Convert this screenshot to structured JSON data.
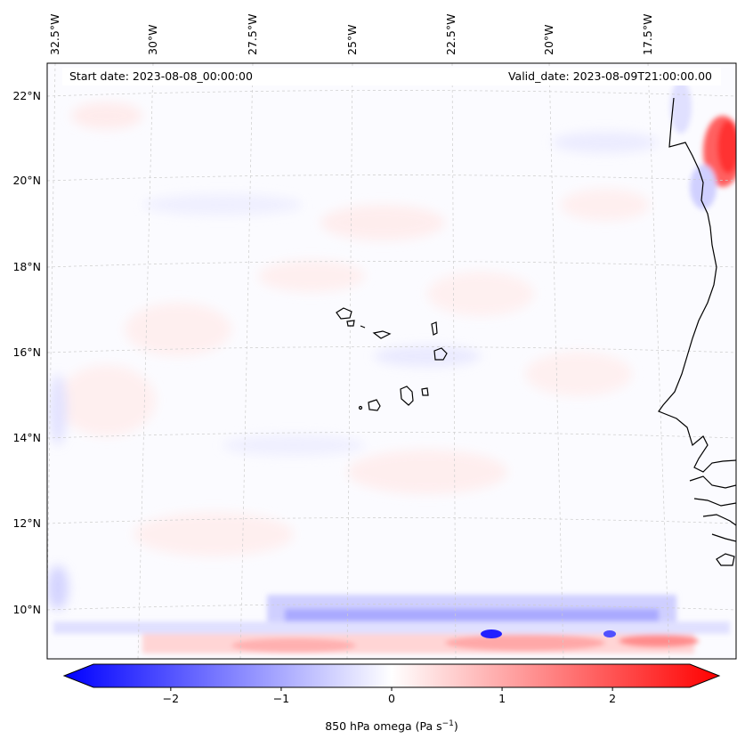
{
  "header": {
    "start_date": "Start date: 2023-08-08_00:00:00",
    "valid_date": "Valid_date: 2023-08-09T21:00:00.00"
  },
  "lon_labels": [
    "32.5°W",
    "30°W",
    "27.5°W",
    "25°W",
    "22.5°W",
    "20°W",
    "17.5°W"
  ],
  "lat_labels": [
    "22°N",
    "20°N",
    "18°N",
    "16°N",
    "14°N",
    "12°N",
    "10°N"
  ],
  "colorbar": {
    "label_main": "850 hPa omega (Pa s",
    "label_sup": "−1",
    "label_end": ")",
    "ticks": [
      "−2",
      "−1",
      "0",
      "1",
      "2"
    ],
    "min": -2.7,
    "max": 2.7,
    "colormap": "bwr",
    "extend": "both"
  },
  "colors": {
    "negative": "#0000ff",
    "neutral": "#ffffff",
    "positive": "#ff0000",
    "coastline": "#000000",
    "gridline": "#cccccc"
  }
}
